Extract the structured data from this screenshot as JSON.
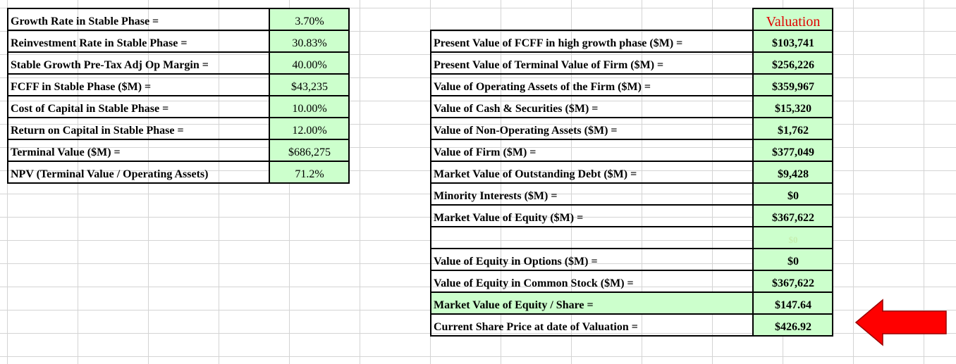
{
  "stable_phase": [
    {
      "label": "Growth Rate in Stable Phase =",
      "value": "3.70%"
    },
    {
      "label": "Reinvestment Rate in Stable Phase =",
      "value": "30.83%"
    },
    {
      "label": "Stable Growth Pre-Tax Adj Op Margin =",
      "value": "40.00%"
    },
    {
      "label": "FCFF in Stable Phase ($M) =",
      "value": "$43,235"
    },
    {
      "label": "Cost of Capital in Stable Phase =",
      "value": "10.00%"
    },
    {
      "label": "Return on Capital in Stable Phase =",
      "value": "12.00%"
    },
    {
      "label": "Terminal Value ($M) =",
      "value": "$686,275"
    },
    {
      "label": "NPV (Terminal Value / Operating Assets)",
      "value": "71.2%"
    }
  ],
  "valuation": {
    "header": "Valuation",
    "rows": [
      {
        "label": "Present Value of FCFF in high growth phase ($M) =",
        "value": "$103,741"
      },
      {
        "label": "Present Value of Terminal Value of Firm ($M) =",
        "value": "$256,226"
      },
      {
        "label": "Value of Operating Assets of the Firm ($M) =",
        "value": "$359,967"
      },
      {
        "label": "Value of Cash  & Securities ($M) =",
        "value": "$15,320"
      },
      {
        "label": "Value of Non-Operating Assets ($M) =",
        "value": "$1,762"
      },
      {
        "label": "Value of Firm ($M) =",
        "value": "$377,049"
      },
      {
        "label": "Market Value of Outstanding Debt ($M) =",
        "value": "$9,428"
      },
      {
        "label": "Minority Interests ($M) =",
        "value": "$0"
      },
      {
        "label": "Market Value of Equity ($M) =",
        "value": "$367,622"
      },
      {
        "label": "",
        "value": "$0"
      },
      {
        "label": "Value of Equity in Options ($M) =",
        "value": "$0"
      },
      {
        "label": "Value of Equity in Common Stock ($M) =",
        "value": "$367,622"
      },
      {
        "label": "Market Value of Equity / Share  =",
        "value": "$147.64"
      },
      {
        "label": "Current Share Price at date of Valuation =",
        "value": "$426.92"
      }
    ]
  },
  "colors": {
    "cell_fill": "#ccffcc",
    "header_text": "#e00000",
    "arrow": "#ff0000",
    "gridline": "#d4d4d4"
  },
  "icons": {
    "pointer": "left-arrow-icon"
  }
}
